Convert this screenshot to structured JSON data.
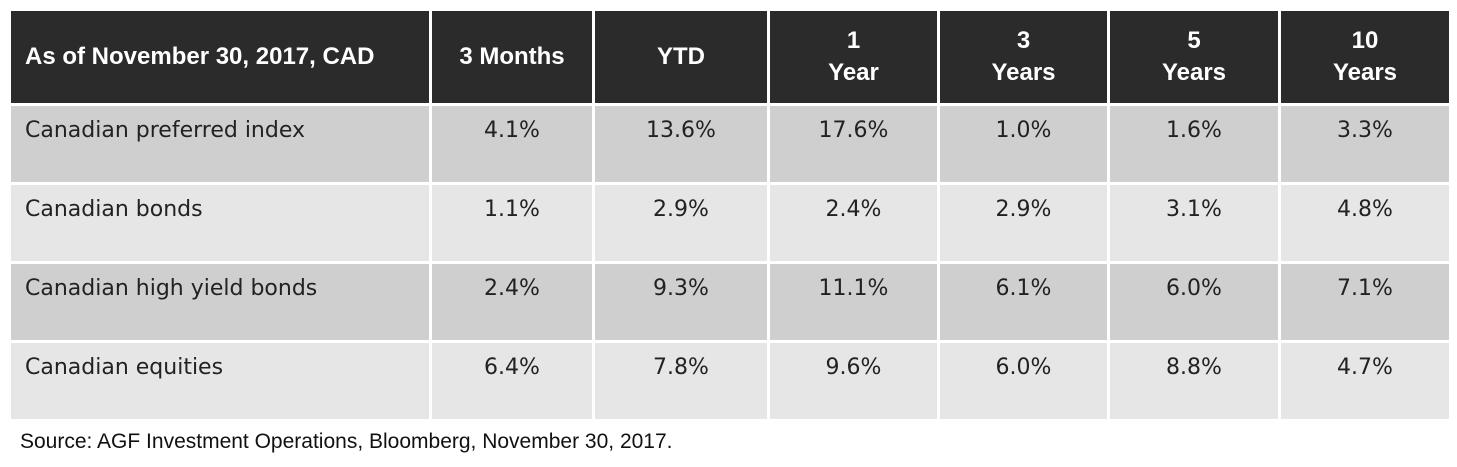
{
  "chart_data": {
    "type": "table",
    "columns": [
      "As of November 30, 2017, CAD",
      "3 Months",
      "YTD",
      "1\nYear",
      "3\nYears",
      "5\nYears",
      "10\nYears"
    ],
    "rows": [
      {
        "label": "Canadian preferred index",
        "values": [
          "4.1%",
          "13.6%",
          "17.6%",
          "1.0%",
          "1.6%",
          "3.3%"
        ]
      },
      {
        "label": "Canadian bonds",
        "values": [
          "1.1%",
          "2.9%",
          "2.4%",
          "2.9%",
          "3.1%",
          "4.8%"
        ]
      },
      {
        "label": "Canadian high yield bonds",
        "values": [
          "2.4%",
          "9.3%",
          "11.1%",
          "6.1%",
          "6.0%",
          "7.1%"
        ]
      },
      {
        "label": "Canadian equities",
        "values": [
          "6.4%",
          "7.8%",
          "9.6%",
          "6.0%",
          "8.8%",
          "4.7%"
        ]
      }
    ],
    "source": "Source: AGF Investment Operations, Bloomberg, November 30, 2017."
  }
}
